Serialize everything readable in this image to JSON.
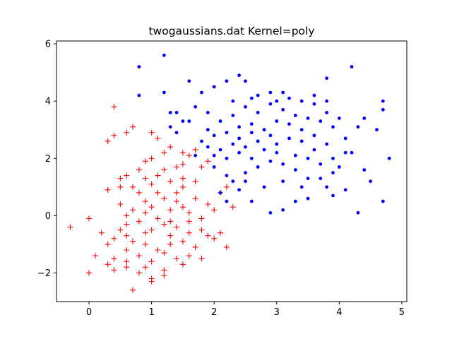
{
  "chart_data": {
    "type": "scatter",
    "title": "twogaussians.dat Kernel=poly",
    "xlabel": "",
    "ylabel": "",
    "xlim": [
      -0.52,
      5.08
    ],
    "ylim": [
      -3.0,
      6.1
    ],
    "xticks": [
      0,
      1,
      2,
      3,
      4,
      5
    ],
    "yticks": [
      -2,
      0,
      2,
      4,
      6
    ],
    "grid": false,
    "legend": "none",
    "series": [
      {
        "marker": "plus",
        "color": "#ff0000",
        "points": [
          [
            0.4,
            3.8
          ],
          [
            0.7,
            3.1
          ],
          [
            0.6,
            2.9
          ],
          [
            0.4,
            2.8
          ],
          [
            0.3,
            2.6
          ],
          [
            1.0,
            2.9
          ],
          [
            1.1,
            2.7
          ],
          [
            1.2,
            2.2
          ],
          [
            1.3,
            2.4
          ],
          [
            1.0,
            2.0
          ],
          [
            0.9,
            1.9
          ],
          [
            1.5,
            2.2
          ],
          [
            1.6,
            2.1
          ],
          [
            1.7,
            2.3
          ],
          [
            1.4,
            1.7
          ],
          [
            1.5,
            1.8
          ],
          [
            1.8,
            1.7
          ],
          [
            1.9,
            1.9
          ],
          [
            1.2,
            1.6
          ],
          [
            0.6,
            1.4
          ],
          [
            0.5,
            1.3
          ],
          [
            0.5,
            1.0
          ],
          [
            0.3,
            0.9
          ],
          [
            0.7,
            1.0
          ],
          [
            0.9,
            1.3
          ],
          [
            1.0,
            1.1
          ],
          [
            1.3,
            1.2
          ],
          [
            1.5,
            1.0
          ],
          [
            1.4,
            0.8
          ],
          [
            1.2,
            0.6
          ],
          [
            1.1,
            0.8
          ],
          [
            0.9,
            0.5
          ],
          [
            0.8,
            0.8
          ],
          [
            0.7,
            0.2
          ],
          [
            0.9,
            0.1
          ],
          [
            1.0,
            0.3
          ],
          [
            1.3,
            0.2
          ],
          [
            1.5,
            0.3
          ],
          [
            1.7,
            0.6
          ],
          [
            1.6,
            0.1
          ],
          [
            1.8,
            -0.1
          ],
          [
            2.1,
            0.8
          ],
          [
            2.2,
            1.0
          ],
          [
            2.3,
            0.3
          ],
          [
            1.1,
            -0.1
          ],
          [
            1.2,
            -0.3
          ],
          [
            1.4,
            -0.4
          ],
          [
            1.6,
            -0.6
          ],
          [
            1.3,
            -0.7
          ],
          [
            1.0,
            -0.5
          ],
          [
            0.8,
            -0.2
          ],
          [
            0.6,
            -0.3
          ],
          [
            0.5,
            -0.5
          ],
          [
            0.4,
            -0.8
          ],
          [
            0.3,
            -1.0
          ],
          [
            0.2,
            -0.6
          ],
          [
            0.6,
            -1.2
          ],
          [
            0.7,
            -0.9
          ],
          [
            0.9,
            -1.0
          ],
          [
            1.1,
            -1.2
          ],
          [
            1.3,
            -1.0
          ],
          [
            1.5,
            -0.9
          ],
          [
            1.7,
            -1.1
          ],
          [
            1.8,
            -0.5
          ],
          [
            1.9,
            -0.7
          ],
          [
            2.0,
            -0.8
          ],
          [
            2.1,
            -0.6
          ],
          [
            2.2,
            -1.1
          ],
          [
            1.6,
            -1.4
          ],
          [
            1.4,
            -1.5
          ],
          [
            1.2,
            -1.3
          ],
          [
            1.0,
            -1.6
          ],
          [
            0.8,
            -1.4
          ],
          [
            0.6,
            -1.6
          ],
          [
            0.4,
            -1.5
          ],
          [
            0.3,
            -1.7
          ],
          [
            0.4,
            -1.9
          ],
          [
            0.6,
            -1.8
          ],
          [
            0.8,
            -2.0
          ],
          [
            1.0,
            -2.2
          ],
          [
            1.2,
            -2.1
          ],
          [
            1.0,
            -2.3
          ],
          [
            0.7,
            -2.6
          ],
          [
            0.0,
            -2.0
          ],
          [
            0.1,
            -1.4
          ],
          [
            0.0,
            -0.1
          ],
          [
            -0.3,
            -0.4
          ],
          [
            0.5,
            0.4
          ],
          [
            0.8,
            1.6
          ],
          [
            1.1,
            1.4
          ],
          [
            1.5,
            1.3
          ],
          [
            1.7,
            1.2
          ],
          [
            1.9,
            0.4
          ],
          [
            0.9,
            -0.6
          ],
          [
            1.3,
            -0.2
          ],
          [
            0.6,
            0.0
          ],
          [
            1.8,
            -1.5
          ],
          [
            1.5,
            -1.7
          ],
          [
            1.2,
            -1.9
          ],
          [
            0.9,
            -1.8
          ],
          [
            0.6,
            -0.7
          ],
          [
            1.4,
            0.5
          ],
          [
            1.6,
            -0.2
          ],
          [
            2.0,
            0.2
          ]
        ]
      },
      {
        "marker": "dot",
        "color": "#0000ff",
        "points": [
          [
            0.8,
            5.2
          ],
          [
            1.2,
            5.6
          ],
          [
            0.8,
            4.2
          ],
          [
            1.2,
            4.3
          ],
          [
            1.3,
            3.6
          ],
          [
            1.4,
            3.6
          ],
          [
            1.5,
            3.3
          ],
          [
            1.3,
            3.1
          ],
          [
            1.4,
            2.9
          ],
          [
            1.6,
            4.7
          ],
          [
            1.8,
            4.3
          ],
          [
            2.0,
            4.5
          ],
          [
            2.2,
            4.7
          ],
          [
            2.4,
            4.9
          ],
          [
            2.5,
            4.7
          ],
          [
            2.7,
            4.2
          ],
          [
            2.9,
            4.3
          ],
          [
            3.1,
            4.3
          ],
          [
            3.4,
            4.0
          ],
          [
            3.8,
            4.8
          ],
          [
            4.2,
            5.2
          ],
          [
            4.7,
            4.0
          ],
          [
            4.7,
            3.7
          ],
          [
            4.8,
            2.0
          ],
          [
            4.6,
            3.0
          ],
          [
            4.4,
            3.4
          ],
          [
            4.3,
            3.1
          ],
          [
            4.2,
            2.2
          ],
          [
            4.4,
            1.6
          ],
          [
            4.5,
            1.2
          ],
          [
            4.3,
            0.1
          ],
          [
            4.7,
            0.5
          ],
          [
            3.9,
            0.7
          ],
          [
            3.8,
            1.0
          ],
          [
            3.5,
            0.6
          ],
          [
            3.3,
            0.5
          ],
          [
            3.1,
            0.2
          ],
          [
            2.9,
            0.1
          ],
          [
            2.6,
            0.5
          ],
          [
            2.4,
            0.9
          ],
          [
            2.2,
            0.5
          ],
          [
            2.1,
            0.8
          ],
          [
            2.3,
            1.2
          ],
          [
            2.5,
            1.5
          ],
          [
            2.7,
            1.7
          ],
          [
            2.9,
            1.9
          ],
          [
            3.1,
            1.8
          ],
          [
            3.3,
            1.6
          ],
          [
            3.5,
            1.3
          ],
          [
            3.7,
            1.8
          ],
          [
            3.9,
            2.0
          ],
          [
            4.1,
            2.2
          ],
          [
            4.0,
            1.7
          ],
          [
            3.8,
            2.5
          ],
          [
            3.6,
            2.8
          ],
          [
            3.4,
            3.0
          ],
          [
            3.2,
            2.7
          ],
          [
            3.0,
            2.5
          ],
          [
            2.8,
            2.3
          ],
          [
            2.6,
            2.0
          ],
          [
            2.4,
            2.2
          ],
          [
            2.2,
            2.0
          ],
          [
            2.0,
            2.1
          ],
          [
            1.9,
            2.4
          ],
          [
            1.8,
            2.6
          ],
          [
            1.9,
            3.0
          ],
          [
            2.0,
            2.8
          ],
          [
            2.1,
            3.3
          ],
          [
            2.2,
            2.9
          ],
          [
            2.3,
            3.5
          ],
          [
            2.4,
            3.1
          ],
          [
            2.5,
            3.8
          ],
          [
            2.6,
            3.2
          ],
          [
            2.7,
            3.6
          ],
          [
            2.8,
            3.0
          ],
          [
            2.9,
            3.9
          ],
          [
            3.0,
            3.3
          ],
          [
            3.1,
            3.7
          ],
          [
            3.2,
            3.2
          ],
          [
            3.3,
            3.5
          ],
          [
            3.4,
            2.6
          ],
          [
            3.5,
            3.4
          ],
          [
            3.6,
            3.9
          ],
          [
            3.7,
            3.3
          ],
          [
            3.8,
            3.6
          ],
          [
            3.9,
            3.1
          ],
          [
            4.0,
            3.4
          ],
          [
            4.1,
            2.7
          ],
          [
            3.6,
            2.3
          ],
          [
            3.3,
            2.1
          ],
          [
            3.0,
            2.2
          ],
          [
            2.7,
            2.6
          ],
          [
            2.5,
            2.4
          ],
          [
            2.3,
            2.5
          ],
          [
            2.1,
            2.3
          ],
          [
            1.7,
            2.1
          ],
          [
            2.0,
            1.7
          ],
          [
            2.2,
            1.4
          ],
          [
            2.5,
            1.2
          ],
          [
            2.8,
            1.0
          ],
          [
            3.1,
            1.2
          ],
          [
            3.4,
            1.0
          ],
          [
            3.7,
            1.3
          ],
          [
            3.9,
            1.5
          ],
          [
            4.1,
            0.9
          ],
          [
            3.5,
            2.0
          ],
          [
            2.9,
            2.8
          ],
          [
            2.6,
            2.9
          ],
          [
            2.4,
            2.7
          ],
          [
            2.3,
            4.0
          ],
          [
            2.6,
            4.1
          ],
          [
            3.0,
            4.0
          ],
          [
            3.2,
            4.1
          ],
          [
            3.6,
            4.2
          ],
          [
            3.8,
            4.0
          ],
          [
            1.7,
            3.8
          ],
          [
            1.9,
            3.6
          ],
          [
            1.6,
            3.3
          ]
        ]
      }
    ]
  }
}
